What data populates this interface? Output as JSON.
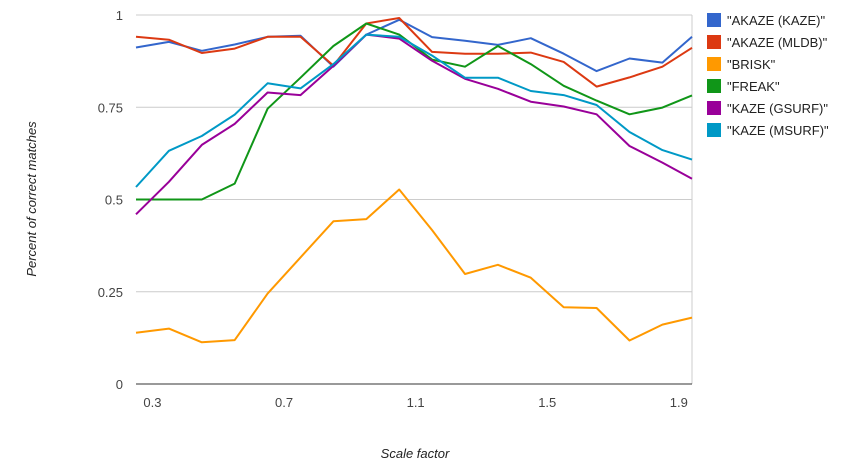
{
  "chart_data": {
    "type": "line",
    "xlabel": "Scale factor",
    "ylabel": "Percent of correct matches",
    "xlim": [
      0.25,
      1.94
    ],
    "ylim": [
      0,
      1
    ],
    "x_ticks": [
      "0.3",
      "0.7",
      "1.1",
      "1.5",
      "1.9"
    ],
    "y_ticks": [
      "0",
      "0.25",
      "0.5",
      "0.75",
      "1"
    ],
    "grid": true,
    "legend_position": "right",
    "x": [
      0.25,
      0.35,
      0.45,
      0.55,
      0.65,
      0.75,
      0.85,
      0.95,
      1.05,
      1.15,
      1.25,
      1.35,
      1.45,
      1.55,
      1.65,
      1.75,
      1.85,
      1.94
    ],
    "series": [
      {
        "name": "\"AKAZE (KAZE)\"",
        "color": "#3366cc",
        "values": [
          0.912,
          0.927,
          0.903,
          0.92,
          0.941,
          0.944,
          0.86,
          0.947,
          0.987,
          0.94,
          0.93,
          0.919,
          0.937,
          0.895,
          0.848,
          0.882,
          0.871,
          0.941
        ]
      },
      {
        "name": "\"AKAZE (MLDB)\"",
        "color": "#dc3912",
        "values": [
          0.941,
          0.933,
          0.897,
          0.909,
          0.941,
          0.941,
          0.863,
          0.977,
          0.992,
          0.9,
          0.895,
          0.895,
          0.898,
          0.873,
          0.806,
          0.831,
          0.86,
          0.911
        ]
      },
      {
        "name": "\"BRISK\"",
        "color": "#ff9900",
        "values": [
          0.139,
          0.15,
          0.113,
          0.119,
          0.245,
          0.343,
          0.441,
          0.447,
          0.527,
          0.417,
          0.298,
          0.323,
          0.288,
          0.208,
          0.206,
          0.118,
          0.161,
          0.18
        ]
      },
      {
        "name": "\"FREAK\"",
        "color": "#109618",
        "values": [
          0.5,
          0.5,
          0.5,
          0.543,
          0.746,
          0.83,
          0.916,
          0.977,
          0.947,
          0.879,
          0.86,
          0.916,
          0.867,
          0.808,
          0.768,
          0.731,
          0.749,
          0.782
        ]
      },
      {
        "name": "\"KAZE (GSURF)\"",
        "color": "#990099",
        "values": [
          0.46,
          0.548,
          0.648,
          0.705,
          0.79,
          0.783,
          0.862,
          0.947,
          0.936,
          0.876,
          0.827,
          0.8,
          0.765,
          0.752,
          0.731,
          0.645,
          0.6,
          0.556
        ]
      },
      {
        "name": "\"KAZE (MSURF)\"",
        "color": "#0099c6",
        "values": [
          0.534,
          0.632,
          0.672,
          0.73,
          0.815,
          0.801,
          0.867,
          0.947,
          0.941,
          0.89,
          0.83,
          0.83,
          0.794,
          0.783,
          0.756,
          0.683,
          0.634,
          0.608
        ]
      }
    ]
  }
}
